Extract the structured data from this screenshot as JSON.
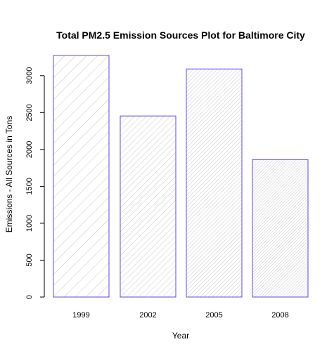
{
  "chart_data": {
    "type": "bar",
    "title": "Total PM2.5 Emission Sources Plot for Baltimore City",
    "xlabel": "Year",
    "ylabel": "Emissions - All Sources in Tons",
    "categories": [
      "1999",
      "2002",
      "2005",
      "2008"
    ],
    "values": [
      3274,
      2454,
      3091,
      1862
    ],
    "yticks": [
      0,
      500,
      1000,
      1500,
      2000,
      2500,
      3000
    ],
    "ylim": [
      0,
      3274
    ],
    "grid": false,
    "legend": "none",
    "colors": {
      "bar_border": "#6a45f0",
      "hatch": "#c8c8c8",
      "axis": "#000000"
    }
  }
}
